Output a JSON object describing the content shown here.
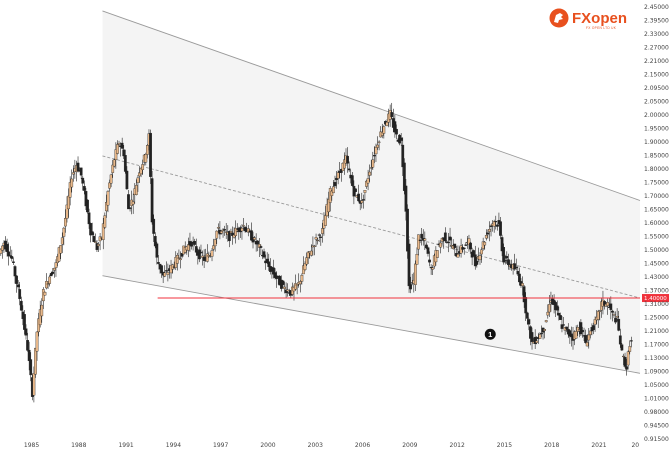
{
  "brand": {
    "name": "FXopen",
    "tagline": "FX OPEN LTD UK",
    "colors": {
      "accent": "#e8501e",
      "up": "#e8b88a",
      "down": "#222222"
    }
  },
  "chart_data": {
    "type": "candlestick",
    "x_range": [
      1983,
      2023.6
    ],
    "ylim": [
      0.905,
      2.455
    ],
    "y_ticks": [
      "2.45000",
      "2.39500",
      "2.33000",
      "2.27000",
      "2.21000",
      "2.15000",
      "2.09500",
      "2.05000",
      "2.00000",
      "1.95000",
      "1.90000",
      "1.85000",
      "1.80000",
      "1.75000",
      "1.70000",
      "1.65000",
      "1.60000",
      "1.55000",
      "1.50000",
      "1.45000",
      "1.43000",
      "1.37000",
      "1.31000",
      "1.25000",
      "1.21000",
      "1.17000",
      "1.13000",
      "1.09000",
      "1.05000",
      "1.01000",
      "0.98000",
      "0.94500",
      "0.91500"
    ],
    "x_ticks": [
      "1985",
      "1988",
      "1991",
      "1994",
      "1997",
      "2000",
      "2003",
      "2006",
      "2009",
      "2012",
      "2015",
      "2018",
      "2021",
      "20"
    ],
    "grid": false,
    "close_path": [
      [
        1983.0,
        1.56
      ],
      [
        1983.3,
        1.6
      ],
      [
        1983.8,
        1.54
      ],
      [
        1984.3,
        1.4
      ],
      [
        1984.8,
        1.22
      ],
      [
        1985.1,
        1.06
      ],
      [
        1985.4,
        1.28
      ],
      [
        1985.8,
        1.42
      ],
      [
        1986.2,
        1.48
      ],
      [
        1986.6,
        1.52
      ],
      [
        1987.0,
        1.62
      ],
      [
        1987.3,
        1.72
      ],
      [
        1987.6,
        1.84
      ],
      [
        1987.9,
        1.88
      ],
      [
        1988.2,
        1.84
      ],
      [
        1988.5,
        1.74
      ],
      [
        1988.8,
        1.64
      ],
      [
        1989.2,
        1.58
      ],
      [
        1989.5,
        1.62
      ],
      [
        1989.9,
        1.78
      ],
      [
        1990.3,
        1.9
      ],
      [
        1990.6,
        1.96
      ],
      [
        1990.9,
        1.92
      ],
      [
        1991.2,
        1.72
      ],
      [
        1991.5,
        1.76
      ],
      [
        1991.9,
        1.86
      ],
      [
        1992.2,
        1.9
      ],
      [
        1992.5,
        1.98
      ],
      [
        1992.7,
        1.68
      ],
      [
        1993.0,
        1.54
      ],
      [
        1993.4,
        1.48
      ],
      [
        1993.8,
        1.5
      ],
      [
        1994.3,
        1.54
      ],
      [
        1994.8,
        1.58
      ],
      [
        1995.2,
        1.6
      ],
      [
        1995.6,
        1.56
      ],
      [
        1996.0,
        1.54
      ],
      [
        1996.4,
        1.56
      ],
      [
        1996.8,
        1.64
      ],
      [
        1997.2,
        1.64
      ],
      [
        1997.6,
        1.62
      ],
      [
        1998.0,
        1.64
      ],
      [
        1998.5,
        1.66
      ],
      [
        1999.0,
        1.62
      ],
      [
        1999.5,
        1.58
      ],
      [
        2000.0,
        1.52
      ],
      [
        2000.5,
        1.48
      ],
      [
        2001.0,
        1.44
      ],
      [
        2001.5,
        1.42
      ],
      [
        2002.0,
        1.45
      ],
      [
        2002.5,
        1.54
      ],
      [
        2003.0,
        1.6
      ],
      [
        2003.5,
        1.64
      ],
      [
        2004.0,
        1.78
      ],
      [
        2004.5,
        1.84
      ],
      [
        2005.0,
        1.9
      ],
      [
        2005.5,
        1.78
      ],
      [
        2006.0,
        1.74
      ],
      [
        2006.5,
        1.86
      ],
      [
        2007.0,
        1.96
      ],
      [
        2007.4,
        2.02
      ],
      [
        2007.8,
        2.06
      ],
      [
        2008.2,
        1.98
      ],
      [
        2008.5,
        1.96
      ],
      [
        2008.8,
        1.72
      ],
      [
        2009.0,
        1.44
      ],
      [
        2009.3,
        1.46
      ],
      [
        2009.6,
        1.62
      ],
      [
        2010.0,
        1.6
      ],
      [
        2010.4,
        1.5
      ],
      [
        2010.8,
        1.58
      ],
      [
        2011.2,
        1.62
      ],
      [
        2011.6,
        1.6
      ],
      [
        2012.0,
        1.56
      ],
      [
        2012.4,
        1.58
      ],
      [
        2012.8,
        1.6
      ],
      [
        2013.2,
        1.52
      ],
      [
        2013.6,
        1.58
      ],
      [
        2014.0,
        1.64
      ],
      [
        2014.4,
        1.68
      ],
      [
        2014.7,
        1.66
      ],
      [
        2015.0,
        1.54
      ],
      [
        2015.4,
        1.52
      ],
      [
        2015.8,
        1.5
      ],
      [
        2016.2,
        1.44
      ],
      [
        2016.5,
        1.32
      ],
      [
        2016.8,
        1.24
      ],
      [
        2017.2,
        1.26
      ],
      [
        2017.6,
        1.3
      ],
      [
        2018.0,
        1.4
      ],
      [
        2018.3,
        1.36
      ],
      [
        2018.7,
        1.3
      ],
      [
        2019.0,
        1.28
      ],
      [
        2019.4,
        1.26
      ],
      [
        2019.8,
        1.3
      ],
      [
        2020.2,
        1.24
      ],
      [
        2020.5,
        1.28
      ],
      [
        2020.9,
        1.32
      ],
      [
        2021.2,
        1.38
      ],
      [
        2021.6,
        1.38
      ],
      [
        2021.9,
        1.34
      ],
      [
        2022.2,
        1.32
      ],
      [
        2022.5,
        1.2
      ],
      [
        2022.8,
        1.15
      ],
      [
        2023.0,
        1.24
      ]
    ],
    "channel": {
      "upper": [
        [
          1989.5,
          2.43
        ],
        [
          2023.6,
          1.75
        ]
      ],
      "middle": [
        [
          1989.5,
          1.91
        ],
        [
          2023.6,
          1.4
        ]
      ],
      "lower": [
        [
          1989.5,
          1.48
        ],
        [
          2023.6,
          1.13
        ]
      ]
    },
    "support_level": {
      "value": 1.4,
      "label": "1.40000",
      "from_x": 1993.0,
      "color": "#f0323c"
    },
    "annotation": {
      "label": "1",
      "x": 2014.1,
      "y": 1.27
    }
  }
}
